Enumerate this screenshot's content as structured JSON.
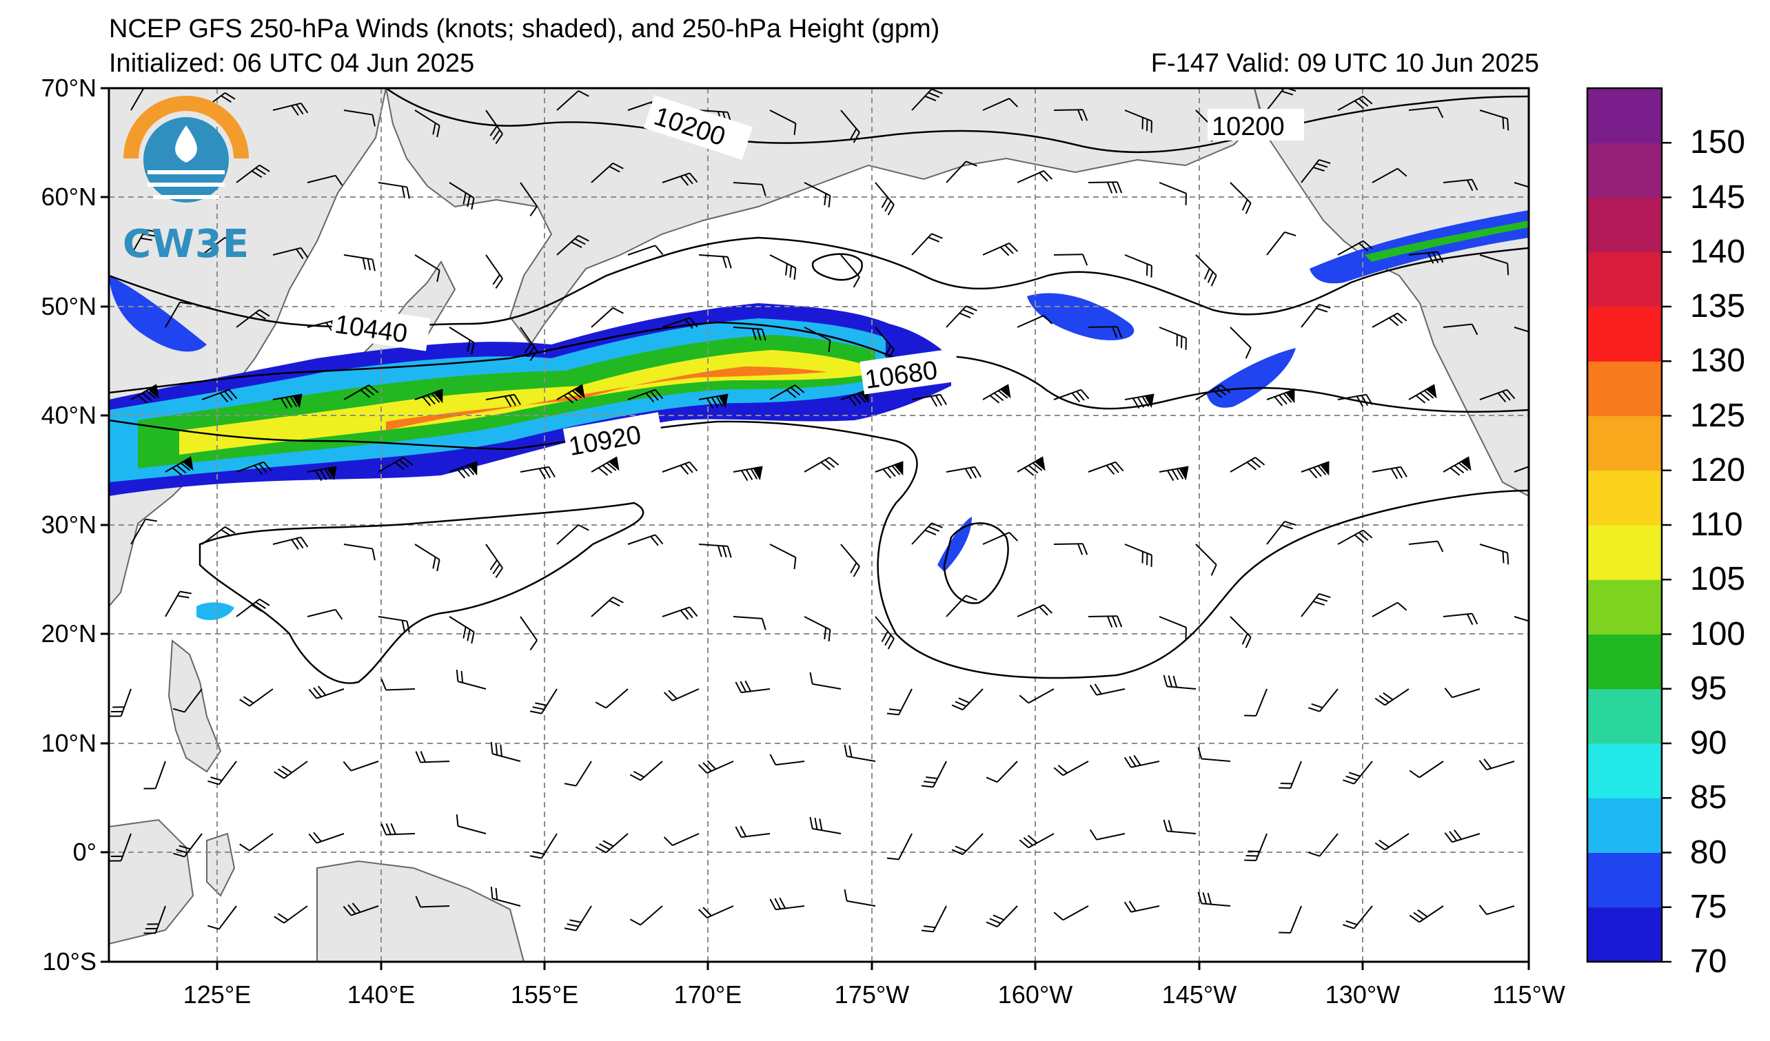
{
  "header": {
    "title": "NCEP GFS 250-hPa Winds (knots; shaded), and 250-hPa Height (gpm)",
    "initialized": "Initialized: 06 UTC 04 Jun 2025",
    "valid": "F-147  Valid: 09 UTC 10 Jun 2025"
  },
  "logo": {
    "text": "CW3E",
    "colors": {
      "orange": "#f39c2c",
      "blue": "#2f8fbf"
    }
  },
  "map": {
    "lat_labels": [
      "70°N",
      "60°N",
      "50°N",
      "40°N",
      "30°N",
      "20°N",
      "10°N",
      "0°",
      "10°S"
    ],
    "lon_labels": [
      "125°E",
      "140°E",
      "155°E",
      "170°E",
      "175°W",
      "160°W",
      "145°W",
      "130°W",
      "115°W"
    ],
    "contour_labels": [
      "10200",
      "10200",
      "10440",
      "10680",
      "10920"
    ],
    "colors": {
      "land": "#e6e6e6",
      "coast": "#666666",
      "grid": "#8c8c8c",
      "contour": "#000000"
    }
  },
  "colorbar": {
    "ticks": [
      "70",
      "75",
      "80",
      "85",
      "90",
      "95",
      "100",
      "105",
      "110",
      "120",
      "125",
      "130",
      "135",
      "140",
      "145",
      "150"
    ],
    "colors": [
      "#1a1ad6",
      "#1f44f0",
      "#1fb7f2",
      "#23e8e8",
      "#2bd69c",
      "#22b822",
      "#7ed321",
      "#f0f020",
      "#fbd31c",
      "#f7a81c",
      "#f77a1c",
      "#fa1e1e",
      "#d81e3c",
      "#b21a5a",
      "#962078",
      "#7a1e8c"
    ]
  }
}
